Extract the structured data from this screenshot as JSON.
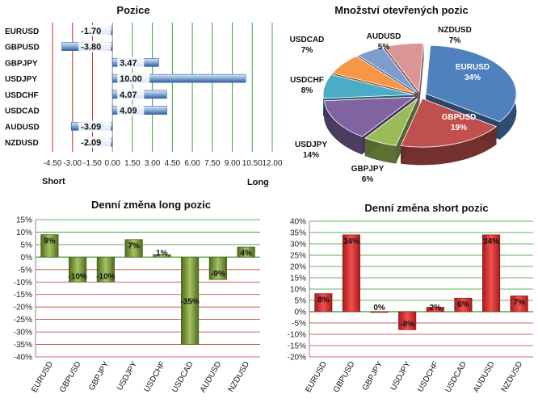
{
  "colors": {
    "long_bar": "#5b8ac8",
    "short_bar": "#4a78b8",
    "green_bar_light": "#9cbb5a",
    "green_bar_dark": "#4f6a1e",
    "red_bar_light": "#ef4b4b",
    "red_bar_dark": "#a81a1a",
    "zero_line_green": "#2e9a2e",
    "grid_red": "#c0392b"
  },
  "chart_data": [
    {
      "type": "bar",
      "orientation": "horizontal",
      "title": "Pozice",
      "categories": [
        "EURUSD",
        "GBPUSD",
        "GBPJPY",
        "USDJPY",
        "USDCHF",
        "USDCAD",
        "AUDUSD",
        "NZDUSD"
      ],
      "values": [
        -1.7,
        -3.8,
        3.47,
        10.0,
        4.07,
        4.09,
        -3.09,
        -2.09
      ],
      "value_labels": [
        "-1.70",
        "-3.80",
        "3.47",
        "10.00",
        "4.07",
        "4.09",
        "-3.09",
        "-2.09"
      ],
      "xlim": [
        -4.5,
        12.0
      ],
      "xticks": [
        "-4.50",
        "-3.00",
        "-1.50",
        "0.00",
        "1.50",
        "3.00",
        "4.50",
        "6.00",
        "7.50",
        "9.00",
        "10.50",
        "12.00"
      ],
      "xlabel_left": "Short",
      "xlabel_right": "Long"
    },
    {
      "type": "pie",
      "title": "Množství otevřených pozic",
      "slices": [
        {
          "label": "EURUSD",
          "value": 34,
          "pct": "34%",
          "color": "#4f81bd"
        },
        {
          "label": "GBPUSD",
          "value": 19,
          "pct": "19%",
          "color": "#c0504d"
        },
        {
          "label": "GBPJPY",
          "value": 6,
          "pct": "6%",
          "color": "#9bbb59"
        },
        {
          "label": "USDJPY",
          "value": 14,
          "pct": "14%",
          "color": "#8064a2"
        },
        {
          "label": "USDCHF",
          "value": 8,
          "pct": "8%",
          "color": "#4bacc6"
        },
        {
          "label": "USDCAD",
          "value": 7,
          "pct": "7%",
          "color": "#f79646"
        },
        {
          "label": "AUDUSD",
          "value": 5,
          "pct": "5%",
          "color": "#7f9ccf"
        },
        {
          "label": "NZDUSD",
          "value": 7,
          "pct": "7%",
          "color": "#d99694"
        }
      ]
    },
    {
      "type": "bar",
      "title": "Denní změna long pozic",
      "categories": [
        "EURUSD",
        "GBPUSD",
        "GBPJPY",
        "USDJPY",
        "USDCHF",
        "USDCAD",
        "AUDUSD",
        "NZDUSD"
      ],
      "values": [
        9,
        -10,
        -10,
        7,
        1,
        -35,
        -9,
        4
      ],
      "value_labels": [
        "9%",
        "-10%",
        "-10%",
        "7%",
        "1%",
        "-35%",
        "-9%",
        "4%"
      ],
      "ylim": [
        -40,
        15
      ],
      "yticks": [
        "15%",
        "10%",
        "5%",
        "0%",
        "-5%",
        "-10%",
        "-15%",
        "-20%",
        "-25%",
        "-30%",
        "-35%",
        "-40%"
      ]
    },
    {
      "type": "bar",
      "title": "Denní změna short pozic",
      "categories": [
        "EURUSD",
        "GBPUSD",
        "GBPJPY",
        "USDJPY",
        "USDCHF",
        "USDCAD",
        "AUDUSD",
        "NZDUSD"
      ],
      "values": [
        8,
        34,
        0,
        -8,
        2,
        6,
        34,
        7
      ],
      "value_labels": [
        "8%",
        "34%",
        "0%",
        "-8%",
        "2%",
        "6%",
        "34%",
        "7%"
      ],
      "ylim": [
        -20,
        40
      ],
      "yticks": [
        "40%",
        "35%",
        "30%",
        "25%",
        "20%",
        "15%",
        "10%",
        "5%",
        "0%",
        "-5%",
        "-10%",
        "-15%",
        "-20%"
      ]
    }
  ]
}
